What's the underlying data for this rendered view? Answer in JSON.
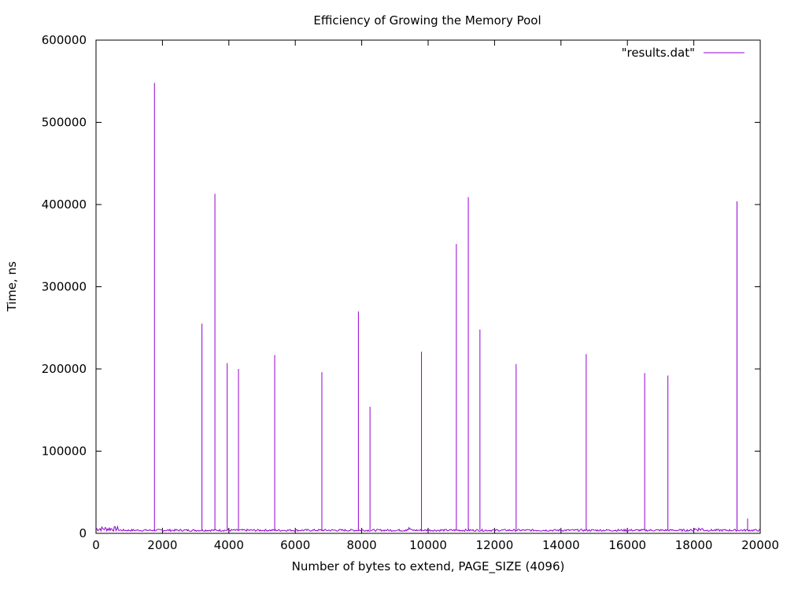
{
  "chart_data": {
    "type": "line",
    "title": "Efficiency of Growing the Memory Pool",
    "xlabel": "Number of bytes to extend, PAGE_SIZE (4096)",
    "ylabel": "Time, ns",
    "xlim": [
      0,
      20000
    ],
    "ylim": [
      0,
      600000
    ],
    "x_ticks": [
      0,
      2000,
      4000,
      6000,
      8000,
      10000,
      12000,
      14000,
      16000,
      18000,
      20000
    ],
    "y_ticks": [
      0,
      100000,
      200000,
      300000,
      400000,
      500000,
      600000
    ],
    "grid": false,
    "legend_position": "top-right",
    "baseline_ns": 4000,
    "series": [
      {
        "name": "\"results.dat\"",
        "color": "#9400d3",
        "peaks": [
          {
            "x": 1760,
            "y": 548000
          },
          {
            "x": 3190,
            "y": 255000
          },
          {
            "x": 3580,
            "y": 413000
          },
          {
            "x": 3950,
            "y": 207000
          },
          {
            "x": 4290,
            "y": 200000
          },
          {
            "x": 5380,
            "y": 217000
          },
          {
            "x": 6800,
            "y": 196000
          },
          {
            "x": 7900,
            "y": 270000
          },
          {
            "x": 8250,
            "y": 154000
          },
          {
            "x": 9800,
            "y": 221000
          },
          {
            "x": 10850,
            "y": 352000
          },
          {
            "x": 11210,
            "y": 409000
          },
          {
            "x": 11560,
            "y": 248000
          },
          {
            "x": 12650,
            "y": 206000
          },
          {
            "x": 14760,
            "y": 218000
          },
          {
            "x": 16520,
            "y": 195000
          },
          {
            "x": 17220,
            "y": 192000
          },
          {
            "x": 19300,
            "y": 404000
          },
          {
            "x": 19620,
            "y": 18000
          }
        ]
      }
    ]
  }
}
